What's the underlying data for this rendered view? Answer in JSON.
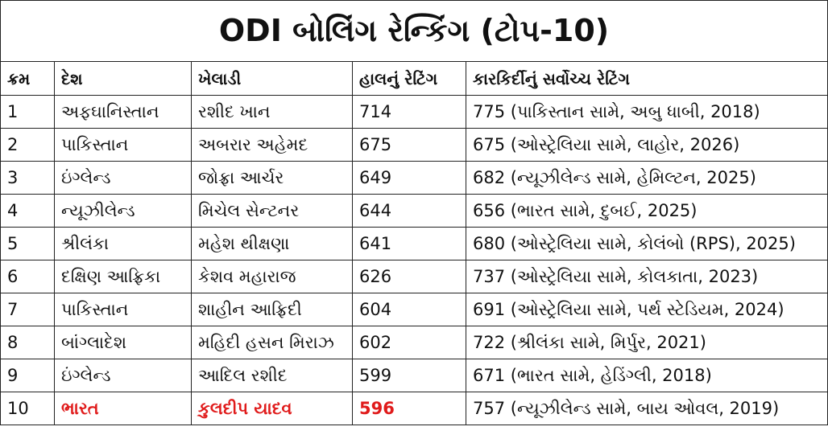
{
  "table": {
    "title": "ODI બોલિંગ રેન્કિંગ (ટોપ-10)",
    "headers": [
      "ક્રમ",
      "દેશ",
      "ખેલાડી",
      "હાલનું રેટિંગ",
      "કારકિર્દીનું સર્વોચ્ચ રેટિંગ"
    ],
    "rows": [
      [
        1,
        "અફઘાનિસ્તાન",
        "રશીદ ખાન",
        714,
        "775 (પાકિસ્તાન સામે, અબુ ધાબી, 2018)"
      ],
      [
        2,
        "પાકિસ્તાન",
        "અબરાર અહેમદ",
        675,
        "675 (ઓસ્ટ્રેલિયા સામે, લાહોર, 2026)"
      ],
      [
        3,
        "ઇંગ્લેન્ડ",
        "જોફ્રા આર્ચર",
        649,
        "682 (ન્યૂઝીલેન્ડ સામે, હેમિલ્ટન, 2025)"
      ],
      [
        4,
        "ન્યૂઝીલેન્ડ",
        "મિચેલ સેન્ટનર",
        644,
        "656 (ભારત સામે, દુબઈ, 2025)"
      ],
      [
        5,
        "શ્રીલંકા",
        "મહેશ થીક્ષણા",
        641,
        "680 (ઓસ્ટ્રેલિયા સામે, કોલંબો (RPS), 2025)"
      ],
      [
        6,
        "દક્ષિણ આફ્રિકા",
        "કેશવ મહારાજ",
        626,
        "737 (ઓસ્ટ્રેલિયા સામે, કોલકાતા, 2023)"
      ],
      [
        7,
        "પાકિસ્તાન",
        "શાહીન આફ્રિદી",
        604,
        "691 (ઓસ્ટ્રેલિયા સામે, પર્થ સ્ટેડિયમ, 2024)"
      ],
      [
        8,
        "બાંગ્લાદેશ",
        "મહિદી હસન મિરાઝ",
        602,
        "722 (શ્રીલંકા સામે, મિર્પુર, 2021)"
      ],
      [
        9,
        "ઇંગ્લેન્ડ",
        "આદિલ રશીદ",
        599,
        "671 (ભારત સામે, હેડિંગ્લી, 2018)"
      ],
      [
        10,
        "ભારત",
        "કુલદીપ યાદવ",
        596,
        "757 (ન્યૂઝીલેન્ડ સામે, બાય ઓવલ, 2019)"
      ]
    ]
  }
}
